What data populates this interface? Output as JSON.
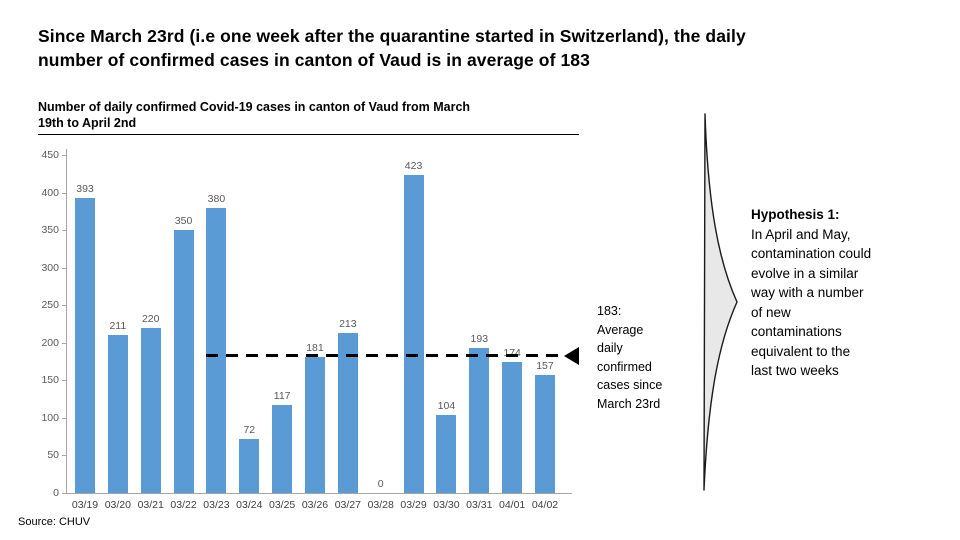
{
  "slide": {
    "title": "Since March 23rd (i.e one week after the quarantine started in Switzerland), the daily\nnumber of confirmed cases in canton of Vaud is in average of 183",
    "source": "Source: CHUV"
  },
  "chart_data": {
    "type": "bar",
    "title": "Number of daily confirmed Covid-19 cases in canton of Vaud from March\n19th to April 2nd",
    "categories": [
      "03/19",
      "03/20",
      "03/21",
      "03/22",
      "03/23",
      "03/24",
      "03/25",
      "03/26",
      "03/27",
      "03/28",
      "03/29",
      "03/30",
      "03/31",
      "04/01",
      "04/02"
    ],
    "values": [
      393,
      211,
      220,
      350,
      380,
      72,
      117,
      181,
      213,
      0,
      423,
      104,
      193,
      174,
      157
    ],
    "xlabel": "",
    "ylabel": "",
    "ylim": [
      0,
      450
    ],
    "ytick_step": 50,
    "bar_color": "#5b9bd5",
    "grid": false,
    "legend_position": "none",
    "average_line": {
      "value": 183,
      "starts_at_category": "03/23",
      "style": "dashed",
      "color": "#000000"
    }
  },
  "annotation": {
    "text": "183:\nAverage\ndaily\nconfirmed\ncases since\nMarch 23rd"
  },
  "hypothesis": {
    "heading": "Hypothesis 1:",
    "body": "In April and May,\ncontamination could\nevolve in a similar\nway with a number\nof new\ncontaminations\nequivalent to the\nlast two weeks"
  }
}
